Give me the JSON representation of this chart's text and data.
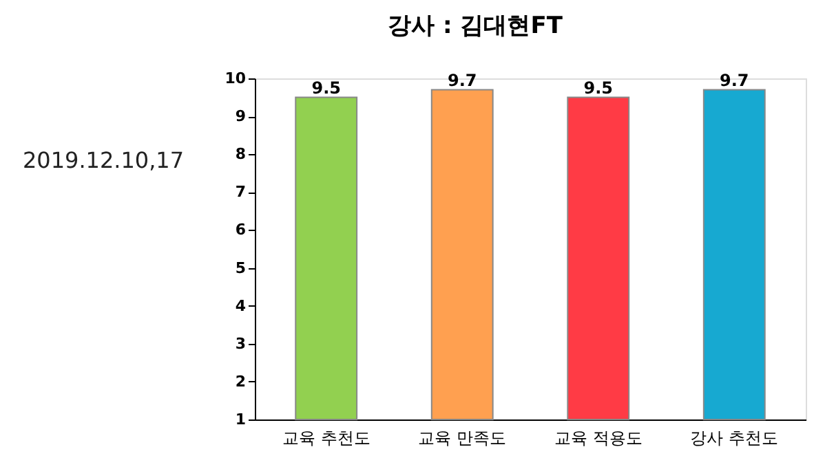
{
  "chart_data": {
    "type": "bar",
    "title": "강사 : 김대현FT",
    "categories": [
      "교육 추천도",
      "교육 만족도",
      "교육 적용도",
      "강사 추천도"
    ],
    "values": [
      9.5,
      9.7,
      9.5,
      9.7
    ],
    "colors": [
      "#92d050",
      "#ffa050",
      "#ff3b45",
      "#17a9d1"
    ],
    "ylim": [
      1,
      10
    ],
    "yticks": [
      1,
      2,
      3,
      4,
      5,
      6,
      7,
      8,
      9,
      10
    ],
    "grid": false,
    "data_labels": true,
    "annotations": [
      "2019.12.10,17"
    ]
  }
}
